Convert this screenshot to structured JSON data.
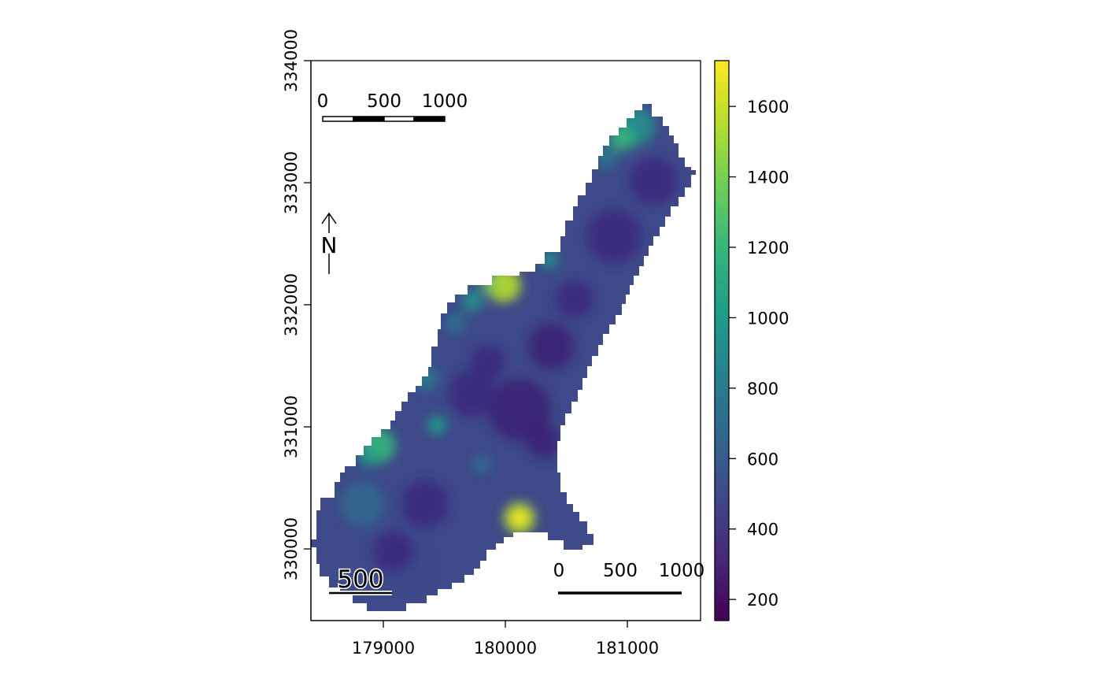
{
  "map": {
    "x_axis": {
      "ticks": [
        {
          "value": 179000,
          "label": "179000"
        },
        {
          "value": 180000,
          "label": "180000"
        },
        {
          "value": 181000,
          "label": "181000"
        }
      ]
    },
    "y_axis": {
      "ticks": [
        {
          "value": 330000,
          "label": "330000"
        },
        {
          "value": 331000,
          "label": "331000"
        },
        {
          "value": 332000,
          "label": "332000"
        },
        {
          "value": 333000,
          "label": "333000"
        },
        {
          "value": 334000,
          "label": "334000"
        }
      ]
    },
    "north_arrow": {
      "label": "N"
    },
    "scale_bar_top": {
      "labels": [
        "0",
        "500",
        "1000"
      ]
    },
    "scale_bar_bottom": {
      "labels": [
        "0",
        "500",
        "1000"
      ]
    },
    "scale_bar_left": {
      "label": "500"
    },
    "colorbar": {
      "palette": "viridis",
      "colors": [
        "#440154",
        "#482878",
        "#3e4989",
        "#31688e",
        "#26828e",
        "#1f9e89",
        "#35b779",
        "#6ece58",
        "#b5de2b",
        "#fde725"
      ],
      "min": 140,
      "max": 1730,
      "ticks": [
        {
          "value": 200,
          "label": "200"
        },
        {
          "value": 400,
          "label": "400"
        },
        {
          "value": 600,
          "label": "600"
        },
        {
          "value": 800,
          "label": "800"
        },
        {
          "value": 1000,
          "label": "1000"
        },
        {
          "value": 1200,
          "label": "1200"
        },
        {
          "value": 1400,
          "label": "1400"
        },
        {
          "value": 1600,
          "label": "1600"
        }
      ]
    }
  }
}
